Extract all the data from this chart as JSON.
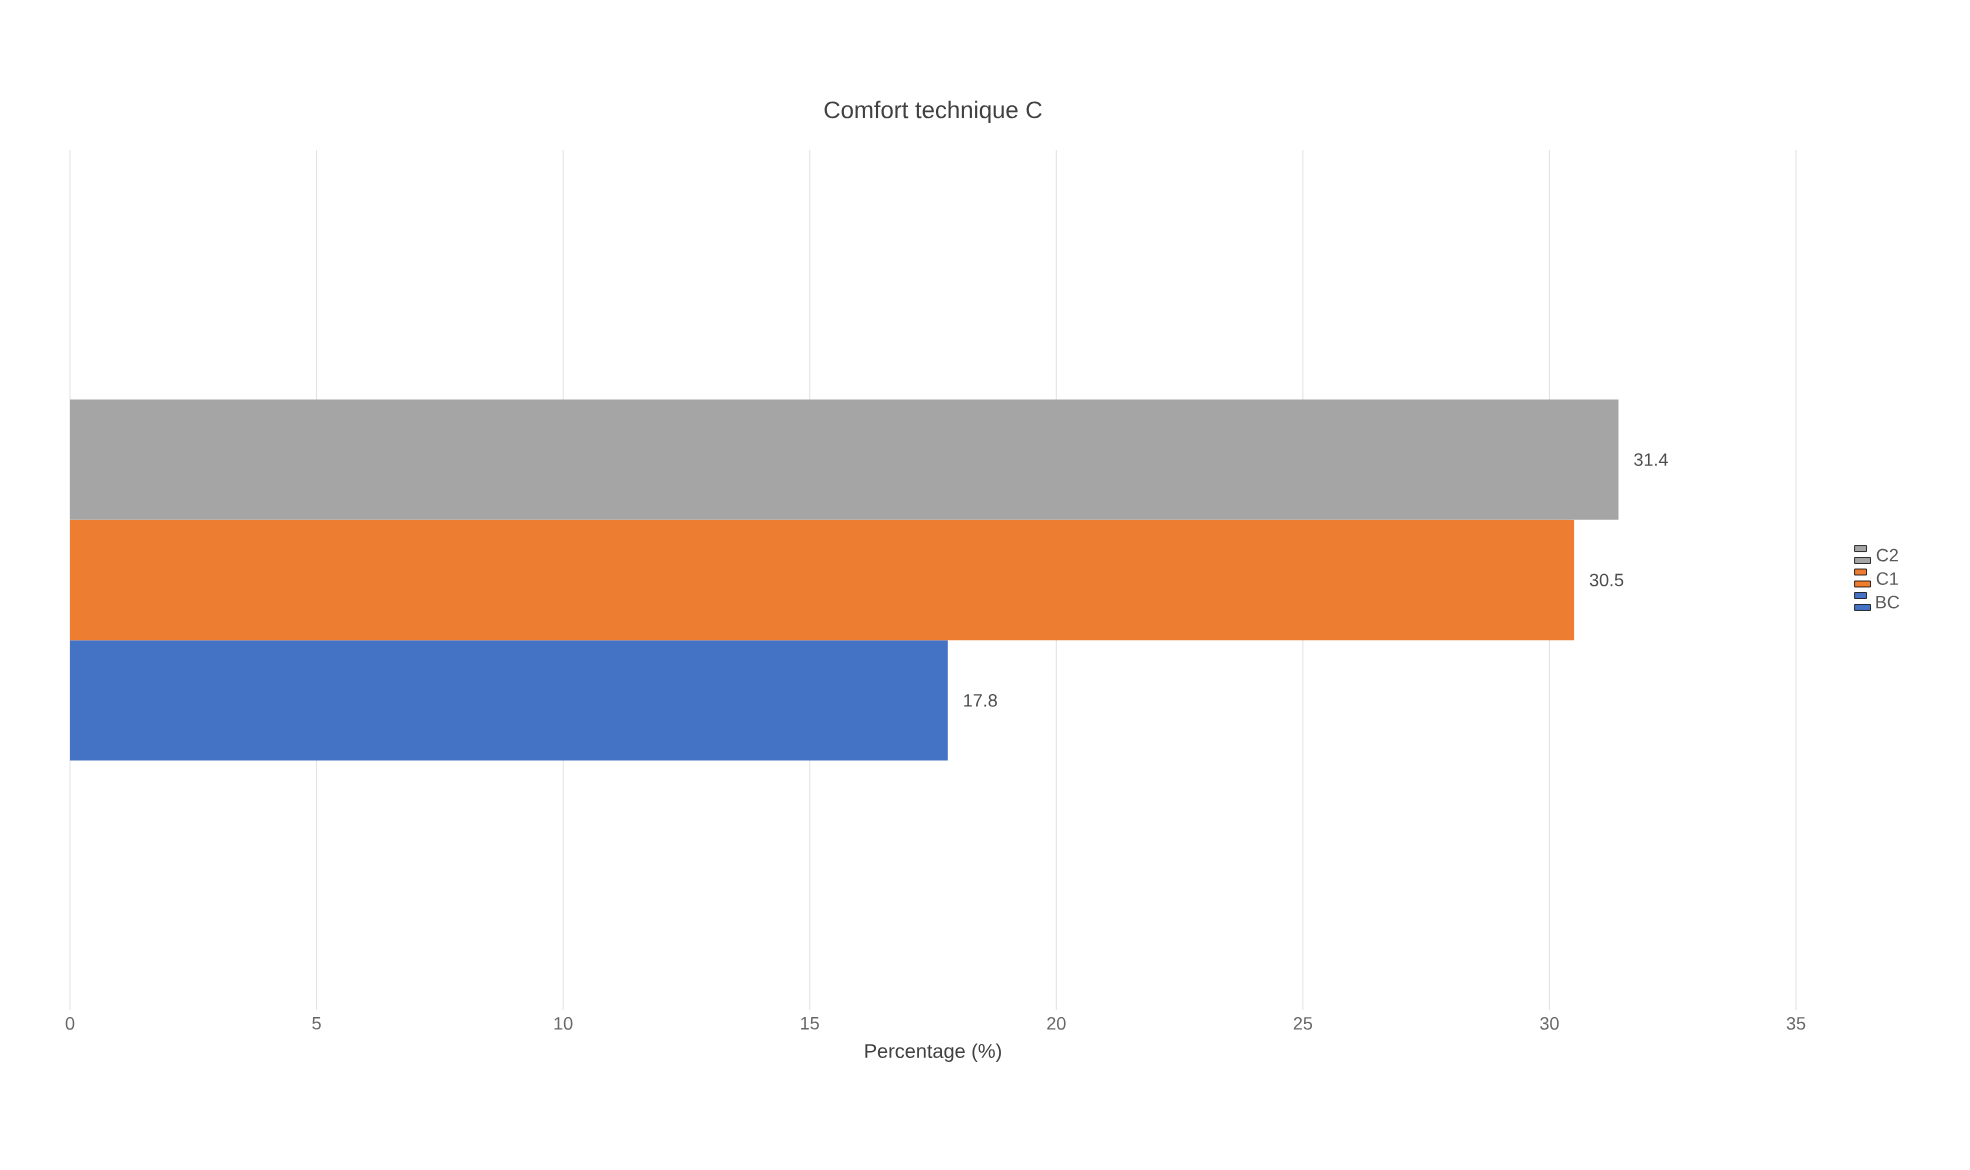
{
  "chart_data": {
    "type": "bar",
    "orientation": "horizontal",
    "title": "Comfort technique C",
    "xlabel": "Percentage (%)",
    "categories": [
      null
    ],
    "series": [
      {
        "name": "BC",
        "color": "#4472c4",
        "values": [
          17.8
        ]
      },
      {
        "name": "C1",
        "color": "#ed7d31",
        "values": [
          30.5
        ]
      },
      {
        "name": "C2",
        "color": "#a5a5a5",
        "values": [
          31.4
        ]
      }
    ],
    "xlim": [
      0,
      35
    ],
    "xticks": [
      0,
      5,
      10,
      15,
      20,
      25,
      30,
      35
    ],
    "grid": "x",
    "legend": "right",
    "data_labels": true
  }
}
